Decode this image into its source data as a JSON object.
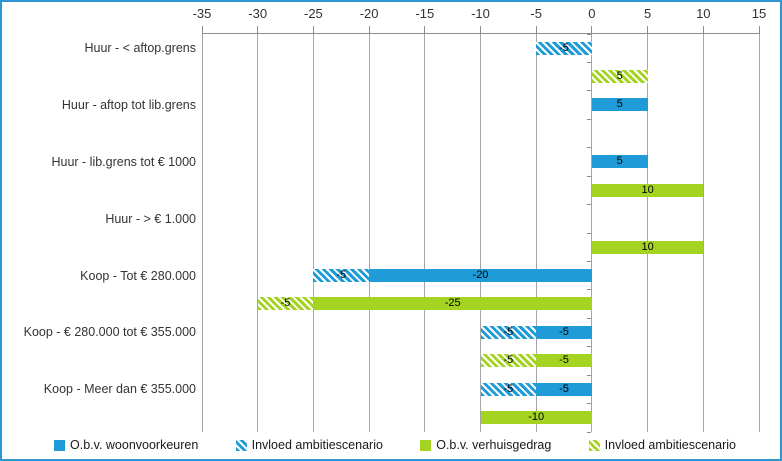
{
  "chart_data": {
    "type": "bar",
    "orientation": "horizontal",
    "title": "",
    "grid": true,
    "legend_position": "bottom",
    "x_axis": {
      "min": -35,
      "max": 15,
      "step": 5,
      "tick_values": [
        -35,
        -30,
        -25,
        -20,
        -15,
        -10,
        -5,
        0,
        5,
        10,
        15
      ],
      "tick_labels": [
        "-35",
        "-30",
        "-25",
        "-20",
        "-15",
        "-10",
        "-5",
        "0",
        "5",
        "10",
        "15"
      ]
    },
    "categories": [
      "Huur - < aftop.grens",
      "Huur - aftop tot lib.grens",
      "Huur - lib.grens tot € 1000",
      "Huur - > € 1.000",
      "Koop - Tot € 280.000",
      "Koop - € 280.000 tot € 355.000",
      "Koop - Meer dan € 355.000"
    ],
    "series": [
      {
        "name": "O.b.v. woonvoorkeuren",
        "color": "#1F9CD7",
        "style": "solid",
        "values": [
          0,
          5,
          5,
          0,
          -20,
          -5,
          -5
        ]
      },
      {
        "name": "Invloed ambitiescenario",
        "color": "#1F9CD7",
        "style": "hatched",
        "values": [
          -5,
          0,
          0,
          0,
          -5,
          -5,
          -5
        ]
      },
      {
        "name": "O.b.v. verhuisgedrag",
        "color": "#A4D322",
        "style": "solid",
        "values": [
          0,
          0,
          10,
          10,
          -25,
          -5,
          -10
        ]
      },
      {
        "name": "Invloed ambitiescenario",
        "color": "#A4D322",
        "style": "hatched",
        "values": [
          5,
          0,
          0,
          0,
          -5,
          -5,
          0
        ]
      }
    ],
    "colors": {
      "blue": "#1F9CD7",
      "green": "#A4D322",
      "gridline": "#A6A6A6",
      "frame_border": "#2E97D3",
      "bar_label": "#000000"
    }
  }
}
